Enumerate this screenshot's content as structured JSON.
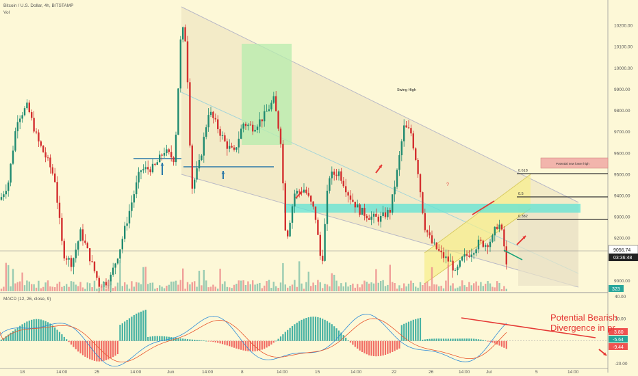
{
  "header": {
    "symbol_title": "Bitcoin / U.S. Dollar, 4h, BITSTAMP",
    "volume_label": "Vol",
    "macd_label": "MACD (12, 26, close, 9)"
  },
  "colors": {
    "background": "#fdf8d7",
    "bull": "#1f8a70",
    "bear": "#d32f2f",
    "channel": "#b9b9c6",
    "support_band": "#5fe3d5",
    "green_box": "#b6ecae",
    "macd_line": "#2b8ad8",
    "signal_line": "#e8552c",
    "annotation_red": "#e53935"
  },
  "chart_data": [
    {
      "type": "candlestick",
      "title": "Bitcoin / U.S. Dollar, 4h, BITSTAMP",
      "ylim": [
        8950,
        10300
      ],
      "y_ticks": [
        "10200.00",
        "10100.00",
        "10000.00",
        "9900.00",
        "9800.00",
        "9700.00",
        "9600.00",
        "9500.00",
        "9400.00",
        "9300.00",
        "9200.00",
        "9100.00",
        "9000.00"
      ],
      "x_ticks": [
        "18",
        "14:00",
        "25",
        "14:00",
        "Jun",
        "14:00",
        "8",
        "14:00",
        "15",
        "14:00",
        "22",
        "26",
        "14:00",
        "Jul",
        "5",
        "14:00"
      ],
      "last_price": "9056.74",
      "countdown": "03:36:48",
      "volume_value": "323",
      "fib_levels": [
        {
          "label": "0.618",
          "price": 9450
        },
        {
          "label": "0.5",
          "price": 9310
        },
        {
          "label": "0.382",
          "price": 9200
        }
      ],
      "annotations": [
        "Swing High",
        "Potential new lower high",
        "?"
      ]
    },
    {
      "type": "bar",
      "title": "MACD (12, 26, close, 9)",
      "ylim": [
        -24,
        42
      ],
      "y_ticks": [
        "40.00",
        "20.00",
        "-20.00"
      ],
      "values_shown": [
        "3.80",
        "-5.64",
        "-9.44"
      ]
    }
  ],
  "annotations": {
    "swing_high": "Swing High",
    "new_lower_high": "Potential new lower high",
    "question_mark": "?",
    "macd_note_line1": "Potential Bearish",
    "macd_note_line2": "Divergence in pr"
  }
}
